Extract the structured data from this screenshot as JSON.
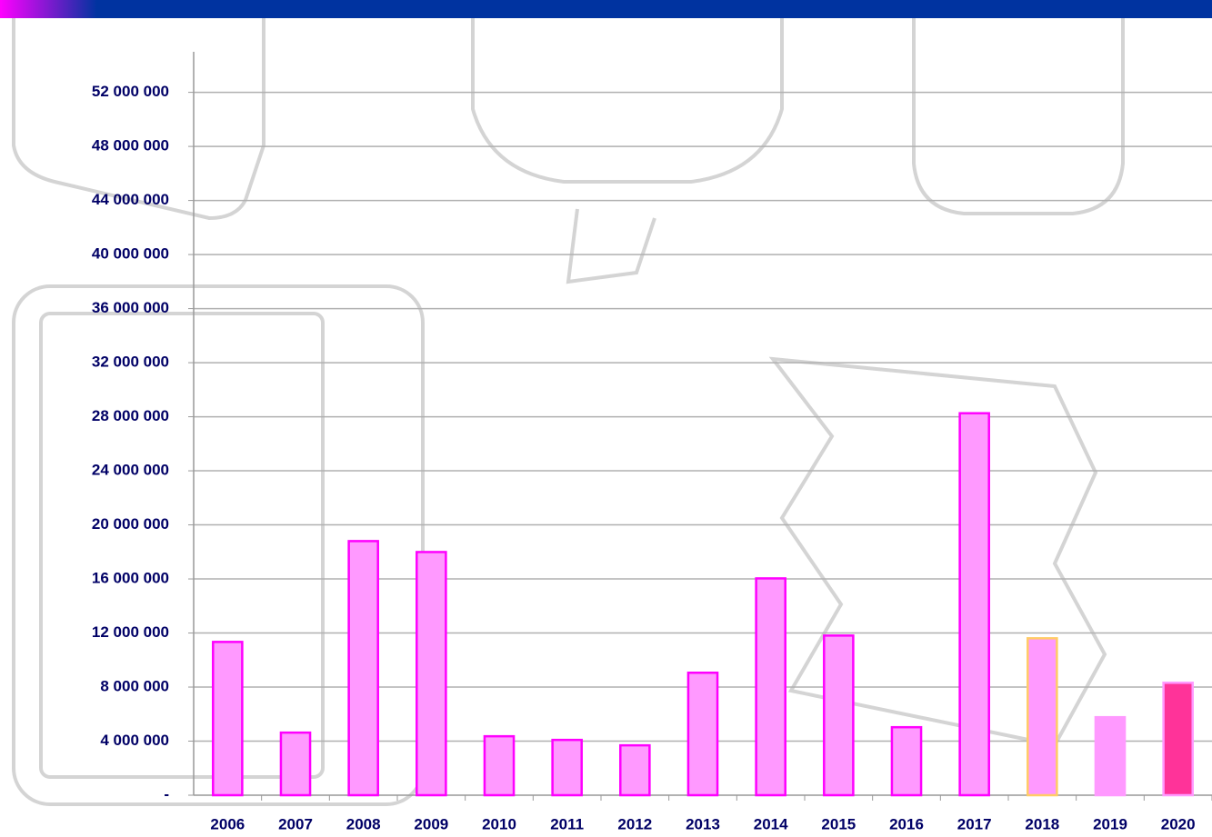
{
  "chart_data": {
    "type": "bar",
    "categories": [
      "2006",
      "2007",
      "2008",
      "2009",
      "2010",
      "2011",
      "2012",
      "2013",
      "2014",
      "2015",
      "2016",
      "2017",
      "2018",
      "2019",
      "2020"
    ],
    "values": [
      11340000,
      4630000,
      18800000,
      17990000,
      4360000,
      4090000,
      3690000,
      9060000,
      16040000,
      11810000,
      5030000,
      28260000,
      11610000,
      5770000,
      8320000
    ],
    "colors": [
      "#ff99ff",
      "#ff99ff",
      "#ff99ff",
      "#ff99ff",
      "#ff99ff",
      "#ff99ff",
      "#ff99ff",
      "#ff99ff",
      "#ff99ff",
      "#ff99ff",
      "#ff99ff",
      "#ff99ff",
      "#ff99ff",
      "#ff99ff",
      "#ff3399"
    ],
    "edge_colors": [
      "#ff00ff",
      "#ff00ff",
      "#ff00ff",
      "#ff00ff",
      "#ff00ff",
      "#ff00ff",
      "#ff00ff",
      "#ff00ff",
      "#ff00ff",
      "#ff00ff",
      "#ff00ff",
      "#ff00ff",
      "#ffcc66",
      "#ff99ff",
      "#ff99ff"
    ],
    "ylim": [
      0,
      55000000
    ],
    "yticks": [
      {
        "value": 0,
        "label": "-"
      },
      {
        "value": 4000000,
        "label": "4 000 000"
      },
      {
        "value": 8000000,
        "label": "8 000 000"
      },
      {
        "value": 12000000,
        "label": "12 000 000"
      },
      {
        "value": 16000000,
        "label": "16 000 000"
      },
      {
        "value": 20000000,
        "label": "20 000 000"
      },
      {
        "value": 24000000,
        "label": "24 000 000"
      },
      {
        "value": 28000000,
        "label": "28 000 000"
      },
      {
        "value": 32000000,
        "label": "32 000 000"
      },
      {
        "value": 36000000,
        "label": "36 000 000"
      },
      {
        "value": 40000000,
        "label": "40 000 000"
      },
      {
        "value": 44000000,
        "label": "44 000 000"
      },
      {
        "value": 48000000,
        "label": "48 000 000"
      },
      {
        "value": 52000000,
        "label": "52 000 000"
      }
    ],
    "grid": true
  }
}
